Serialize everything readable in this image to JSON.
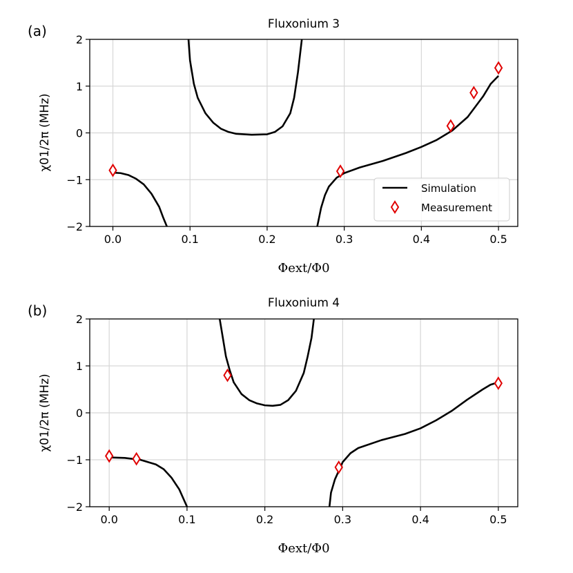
{
  "chart_data": [
    {
      "type": "line",
      "panel_label": "(a)",
      "title": "Fluxonium 3",
      "xlabel": "Φext/Φ0",
      "ylabel": "χ01/2π (MHz)",
      "xlim": [
        -0.03,
        0.525
      ],
      "ylim": [
        -2,
        2
      ],
      "xticks": [
        0.0,
        0.1,
        0.2,
        0.3,
        0.4,
        0.5
      ],
      "xtick_labels": [
        "0.0",
        "0.1",
        "0.2",
        "0.3",
        "0.4",
        "0.5"
      ],
      "yticks": [
        -2,
        -1,
        0,
        1,
        2
      ],
      "ytick_labels": [
        "−2",
        "−1",
        "0",
        "1",
        "2"
      ],
      "grid": true,
      "legend": {
        "position": "lower-right",
        "entries": [
          "Simulation",
          "Measurement"
        ]
      },
      "series": [
        {
          "name": "Simulation",
          "style": "line",
          "color": "#000000",
          "segments": [
            [
              [
                0.0,
                -0.85
              ],
              [
                0.01,
                -0.86
              ],
              [
                0.02,
                -0.9
              ],
              [
                0.03,
                -0.98
              ],
              [
                0.04,
                -1.1
              ],
              [
                0.05,
                -1.3
              ],
              [
                0.06,
                -1.58
              ],
              [
                0.065,
                -1.8
              ],
              [
                0.07,
                -2.0
              ]
            ],
            [
              [
                0.098,
                2.0
              ],
              [
                0.1,
                1.55
              ],
              [
                0.105,
                1.05
              ],
              [
                0.11,
                0.75
              ],
              [
                0.12,
                0.42
              ],
              [
                0.13,
                0.22
              ],
              [
                0.14,
                0.09
              ],
              [
                0.15,
                0.02
              ],
              [
                0.16,
                -0.02
              ],
              [
                0.18,
                -0.04
              ],
              [
                0.2,
                -0.03
              ],
              [
                0.21,
                0.02
              ],
              [
                0.22,
                0.14
              ],
              [
                0.23,
                0.42
              ],
              [
                0.235,
                0.75
              ],
              [
                0.24,
                1.3
              ],
              [
                0.245,
                2.0
              ]
            ],
            [
              [
                0.265,
                -2.0
              ],
              [
                0.27,
                -1.6
              ],
              [
                0.275,
                -1.33
              ],
              [
                0.28,
                -1.15
              ],
              [
                0.29,
                -0.96
              ],
              [
                0.3,
                -0.86
              ],
              [
                0.32,
                -0.74
              ],
              [
                0.35,
                -0.6
              ],
              [
                0.38,
                -0.43
              ],
              [
                0.4,
                -0.3
              ],
              [
                0.42,
                -0.15
              ],
              [
                0.44,
                0.05
              ],
              [
                0.46,
                0.34
              ],
              [
                0.48,
                0.78
              ],
              [
                0.49,
                1.05
              ],
              [
                0.5,
                1.22
              ]
            ]
          ]
        },
        {
          "name": "Measurement",
          "style": "marker",
          "marker": "thin_diamond",
          "color": "#e00000",
          "x": [
            0.0,
            0.295,
            0.438,
            0.468,
            0.5
          ],
          "y": [
            -0.8,
            -0.82,
            0.15,
            0.86,
            1.39
          ]
        }
      ]
    },
    {
      "type": "line",
      "panel_label": "(b)",
      "title": "Fluxonium 4",
      "xlabel": "Φext/Φ0",
      "ylabel": "χ01/2π (MHz)",
      "xlim": [
        -0.025,
        0.525
      ],
      "ylim": [
        -2,
        2
      ],
      "xticks": [
        0.0,
        0.1,
        0.2,
        0.3,
        0.4,
        0.5
      ],
      "xtick_labels": [
        "0.0",
        "0.1",
        "0.2",
        "0.3",
        "0.4",
        "0.5"
      ],
      "yticks": [
        -2,
        -1,
        0,
        1,
        2
      ],
      "ytick_labels": [
        "−2",
        "−1",
        "0",
        "1",
        "2"
      ],
      "grid": true,
      "series": [
        {
          "name": "Simulation",
          "style": "line",
          "color": "#000000",
          "segments": [
            [
              [
                0.0,
                -0.95
              ],
              [
                0.02,
                -0.96
              ],
              [
                0.04,
                -1.0
              ],
              [
                0.06,
                -1.1
              ],
              [
                0.07,
                -1.2
              ],
              [
                0.08,
                -1.38
              ],
              [
                0.09,
                -1.63
              ],
              [
                0.1,
                -2.0
              ]
            ],
            [
              [
                0.142,
                2.0
              ],
              [
                0.145,
                1.7
              ],
              [
                0.15,
                1.2
              ],
              [
                0.155,
                0.9
              ],
              [
                0.16,
                0.65
              ],
              [
                0.17,
                0.4
              ],
              [
                0.18,
                0.27
              ],
              [
                0.19,
                0.2
              ],
              [
                0.2,
                0.16
              ],
              [
                0.21,
                0.15
              ],
              [
                0.22,
                0.17
              ],
              [
                0.23,
                0.27
              ],
              [
                0.24,
                0.47
              ],
              [
                0.25,
                0.85
              ],
              [
                0.255,
                1.2
              ],
              [
                0.26,
                1.6
              ],
              [
                0.263,
                2.0
              ]
            ],
            [
              [
                0.283,
                -2.0
              ],
              [
                0.285,
                -1.7
              ],
              [
                0.29,
                -1.42
              ],
              [
                0.3,
                -1.05
              ],
              [
                0.31,
                -0.86
              ],
              [
                0.32,
                -0.75
              ],
              [
                0.35,
                -0.58
              ],
              [
                0.38,
                -0.45
              ],
              [
                0.4,
                -0.33
              ],
              [
                0.42,
                -0.16
              ],
              [
                0.44,
                0.04
              ],
              [
                0.46,
                0.28
              ],
              [
                0.48,
                0.5
              ],
              [
                0.49,
                0.6
              ],
              [
                0.5,
                0.65
              ]
            ]
          ]
        },
        {
          "name": "Measurement",
          "style": "marker",
          "marker": "thin_diamond",
          "color": "#e00000",
          "x": [
            0.0,
            0.035,
            0.152,
            0.295,
            0.5
          ],
          "y": [
            -0.92,
            -0.98,
            0.8,
            -1.16,
            0.63
          ]
        }
      ]
    }
  ]
}
